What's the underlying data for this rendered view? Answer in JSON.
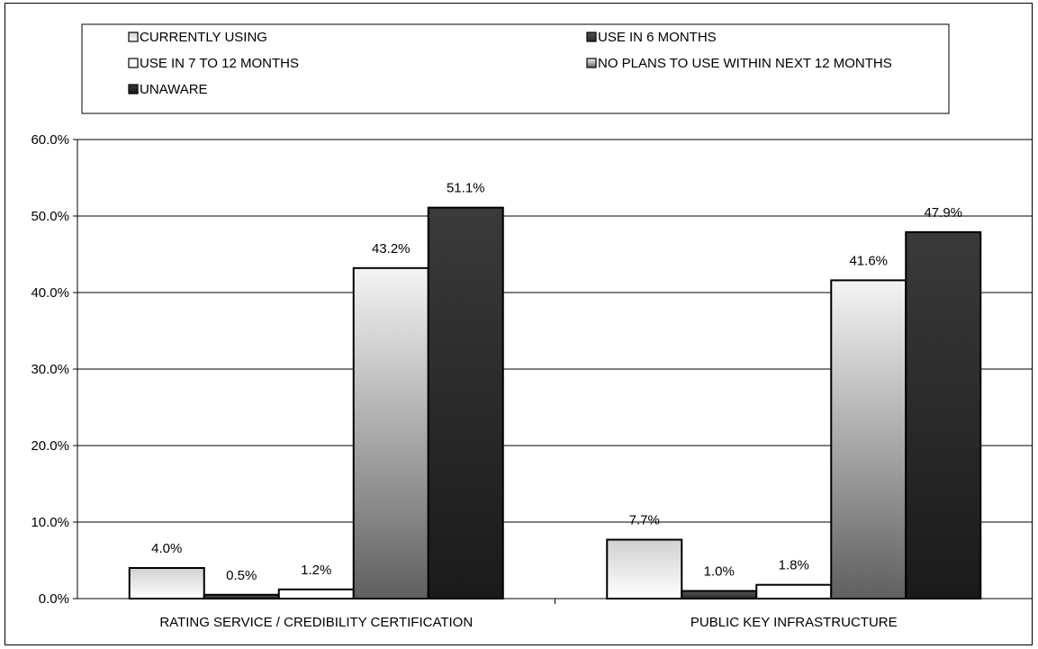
{
  "chart_data": {
    "type": "bar",
    "title": "",
    "xlabel": "",
    "ylabel": "",
    "ylim": [
      0,
      60
    ],
    "y_ticks": [
      "0.0%",
      "10.0%",
      "20.0%",
      "30.0%",
      "40.0%",
      "50.0%",
      "60.0%"
    ],
    "y_tick_values": [
      0,
      10,
      20,
      30,
      40,
      50,
      60
    ],
    "grid": true,
    "legend_position": "top",
    "categories": [
      "RATING SERVICE / CREDIBILITY CERTIFICATION",
      "PUBLIC KEY INFRASTRUCTURE"
    ],
    "series": [
      {
        "name": "CURRENTLY USING",
        "values": [
          4.0,
          7.7
        ],
        "labels": [
          "4.0%",
          "7.7%"
        ],
        "color": "light-gradient"
      },
      {
        "name": "USE IN 6 MONTHS",
        "values": [
          0.5,
          1.0
        ],
        "labels": [
          "0.5%",
          "1.0%"
        ],
        "color": "dark"
      },
      {
        "name": "USE IN 7 TO 12 MONTHS",
        "values": [
          1.2,
          1.8
        ],
        "labels": [
          "1.2%",
          "1.8%"
        ],
        "color": "white"
      },
      {
        "name": "NO PLANS TO USE WITHIN NEXT 12 MONTHS",
        "values": [
          43.2,
          41.6
        ],
        "labels": [
          "43.2%",
          "41.6%"
        ],
        "color": "gray-gradient"
      },
      {
        "name": "UNAWARE",
        "values": [
          51.1,
          47.9
        ],
        "labels": [
          "51.1%",
          "47.9%"
        ],
        "color": "black-gradient"
      }
    ]
  }
}
